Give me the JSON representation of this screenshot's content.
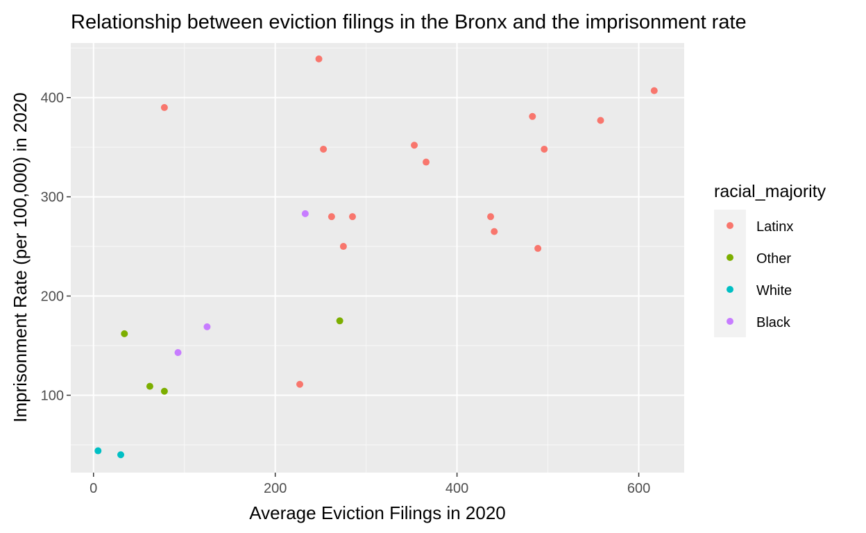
{
  "chart_data": {
    "type": "scatter",
    "title": "Relationship between eviction filings in the Bronx and the imprisonment rate",
    "xlabel": "Average Eviction Filings in 2020",
    "ylabel": "Imprisonment Rate (per 100,000) in 2020",
    "xlim": [
      -25,
      650
    ],
    "ylim": [
      22,
      455
    ],
    "x_ticks": [
      0,
      200,
      400,
      600
    ],
    "y_ticks": [
      100,
      200,
      300,
      400
    ],
    "x_tick_labels": [
      "0",
      "200",
      "400",
      "600"
    ],
    "y_tick_labels": [
      "100",
      "200",
      "300",
      "400"
    ],
    "grid": true,
    "legend": {
      "title": "racial_majority",
      "placement": "right"
    },
    "series": [
      {
        "name": "Latinx",
        "color": "#F8766D",
        "points": [
          [
            248,
            439
          ],
          [
            617,
            407
          ],
          [
            78,
            390
          ],
          [
            483,
            381
          ],
          [
            558,
            377
          ],
          [
            353,
            352
          ],
          [
            253,
            348
          ],
          [
            496,
            348
          ],
          [
            366,
            335
          ],
          [
            262,
            280
          ],
          [
            285,
            280
          ],
          [
            437,
            280
          ],
          [
            441,
            265
          ],
          [
            275,
            250
          ],
          [
            489,
            248
          ],
          [
            227,
            111
          ]
        ]
      },
      {
        "name": "Other",
        "color": "#7CAE00",
        "points": [
          [
            34,
            162
          ],
          [
            271,
            175
          ],
          [
            62,
            109
          ],
          [
            78,
            104
          ]
        ]
      },
      {
        "name": "White",
        "color": "#00BFC4",
        "points": [
          [
            5,
            44
          ],
          [
            30,
            40
          ]
        ]
      },
      {
        "name": "Black",
        "color": "#C77CFF",
        "points": [
          [
            233,
            283
          ],
          [
            125,
            169
          ],
          [
            93,
            143
          ]
        ]
      }
    ]
  }
}
